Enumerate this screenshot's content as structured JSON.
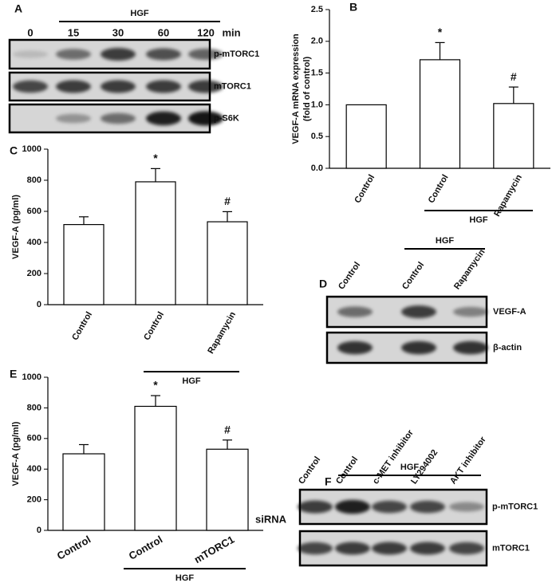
{
  "chart_data": [
    {
      "type": "bar",
      "letter": "B",
      "ylabel": [
        "VEGF-A mRNA expression",
        "(fold of control)"
      ],
      "categories": [
        "Control",
        "Control",
        "Rapamycin"
      ],
      "values": [
        1.0,
        1.71,
        1.02
      ],
      "errors": [
        0,
        0.27,
        0.26
      ],
      "bar_labels": [
        null,
        "*",
        "#"
      ],
      "group_label": "HGF",
      "color": "#ffffff",
      "ylim": [
        0,
        2.5
      ],
      "yticks": [
        {
          "value": 0,
          "label": "0.0"
        },
        0.5,
        {
          "value": 1,
          "label": "1.0"
        },
        1.5,
        {
          "value": 2,
          "label": "2.0"
        },
        2.5
      ]
    },
    {
      "type": "bar",
      "letter": "C",
      "ylabel": [
        "VEGF-A (pg/ml)"
      ],
      "categories": [
        "Control",
        "Control",
        "Rapamycin"
      ],
      "values": [
        515,
        790,
        533
      ],
      "errors": [
        50,
        85,
        65
      ],
      "bar_labels": [
        null,
        "*",
        "#"
      ],
      "group_label": "HGF",
      "color": "#ffffff",
      "ylim": [
        0,
        1000
      ],
      "yticks": [
        0,
        200,
        400,
        600,
        800,
        1000
      ]
    },
    {
      "type": "bar",
      "letter": "E",
      "ylabel": [
        "VEGF-A (pg/ml)"
      ],
      "categories": [
        "Control",
        "Control",
        "mTORC1"
      ],
      "values": [
        500,
        810,
        530
      ],
      "errors": [
        60,
        70,
        60
      ],
      "bar_labels": [
        null,
        "*",
        "#"
      ],
      "group_label": "HGF",
      "x_note": "siRNA",
      "color": "#ffffff",
      "ylim": [
        0,
        1000
      ],
      "yticks": [
        0,
        200,
        400,
        600,
        800,
        1000
      ]
    }
  ],
  "blots": [
    {
      "letter": "A",
      "group_label": "HGF",
      "lanes": [
        "0",
        "15",
        "30",
        "60",
        "120"
      ],
      "unit": "min",
      "rows": [
        "p-mTORC1",
        "mTORC1",
        "p-S6K"
      ]
    },
    {
      "letter": "D",
      "group_label": "HGF",
      "lanes": [
        "Control",
        "Control",
        "Rapamycin"
      ],
      "rows": [
        "VEGF-A",
        "β-actin"
      ]
    },
    {
      "letter": "F",
      "group_label": "HGF",
      "lanes": [
        "Control",
        "Control",
        "c-MET inhibitor",
        "LY294002",
        "AKT inhibitor"
      ],
      "rows": [
        "p-mTORC1",
        "mTORC1"
      ]
    }
  ]
}
